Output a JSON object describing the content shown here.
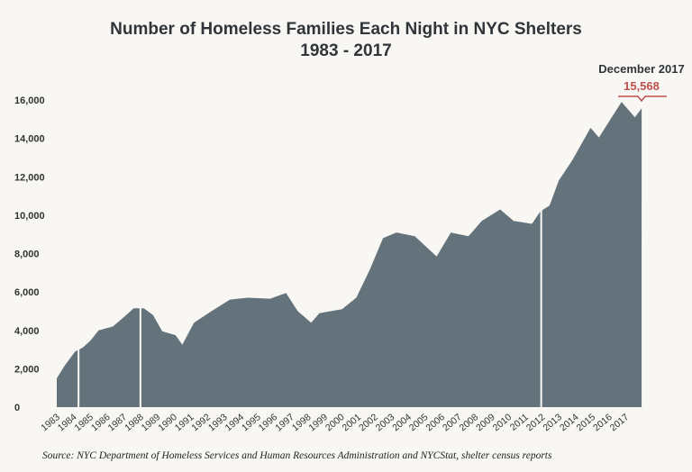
{
  "chart_data": {
    "type": "area",
    "title": "Number of Homeless Families Each Night in NYC Shelters",
    "subtitle": "1983 - 2017",
    "xlabel": "",
    "ylabel": "",
    "ylim": [
      0,
      16000
    ],
    "yticks": [
      "0",
      "2,000",
      "4,000",
      "6,000",
      "8,000",
      "10,000",
      "12,000",
      "14,000",
      "16,000"
    ],
    "ytick_values": [
      0,
      2000,
      4000,
      6000,
      8000,
      10000,
      12000,
      14000,
      16000
    ],
    "xticks": [
      "1983",
      "1984",
      "1985",
      "1986",
      "1987",
      "1988",
      "1989",
      "1990",
      "1991",
      "1992",
      "1993",
      "1994",
      "1995",
      "1996",
      "1997",
      "1998",
      "1999",
      "2000",
      "2001",
      "2002",
      "2003",
      "2004",
      "2005",
      "2006",
      "2007",
      "2008",
      "2009",
      "2010",
      "2011",
      "2012",
      "2013",
      "2014",
      "2015",
      "2016",
      "2017"
    ],
    "grid": false,
    "fill_color": "#64737b",
    "annotation_color": "#c0504d",
    "x": [
      1983.0,
      1983.5,
      1984.1,
      1984.55,
      1985.0,
      1985.5,
      1986.35,
      1987.15,
      1987.6,
      1988.2,
      1988.75,
      1989.3,
      1990.1,
      1990.5,
      1991.2,
      1992.25,
      1993.35,
      1994.4,
      1995.75,
      1996.7,
      1997.4,
      1998.2,
      1998.7,
      2000.05,
      2000.9,
      2001.7,
      2002.5,
      2003.3,
      2004.4,
      2005.7,
      2006.55,
      2007.6,
      2008.4,
      2009.5,
      2010.3,
      2011.4,
      2011.9,
      2012.45,
      2013.0,
      2013.8,
      2014.9,
      2015.4,
      2016.75,
      2017.55,
      2017.95
    ],
    "y": [
      1500,
      2200,
      2900,
      3100,
      3450,
      4000,
      4200,
      4800,
      5150,
      5150,
      4800,
      3950,
      3750,
      3250,
      4400,
      5000,
      5600,
      5700,
      5650,
      5950,
      5000,
      4400,
      4900,
      5100,
      5700,
      7150,
      8800,
      9100,
      8900,
      7850,
      9100,
      8900,
      9700,
      10300,
      9700,
      9550,
      10200,
      10500,
      11800,
      12850,
      14550,
      14050,
      15900,
      15100,
      15568
    ],
    "annotation": {
      "label": "December 2017",
      "value": "15,568",
      "x": 2017.95,
      "y": 15568
    }
  },
  "source": "Source:  NYC Department of Homeless Services and Human Resources Administration and NYCStat, shelter census reports"
}
